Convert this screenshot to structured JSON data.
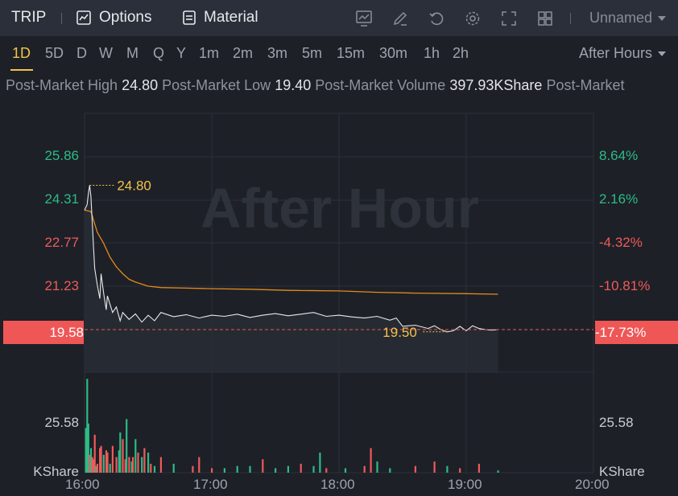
{
  "toolbar": {
    "symbol": "TRIP",
    "options_label": "Options",
    "material_label": "Material",
    "layout_name": "Unnamed",
    "icons": [
      "chart-indicator-icon",
      "draw-pencil-icon",
      "reset-icon",
      "settings-gear-icon",
      "fullscreen-icon",
      "grid-layout-icon"
    ]
  },
  "periods": [
    "1D",
    "5D",
    "D",
    "W",
    "M",
    "Q",
    "Y",
    "1m",
    "2m",
    "3m",
    "5m",
    "15m",
    "30m",
    "1h",
    "2h"
  ],
  "active_period": "1D",
  "session_label": "After Hours",
  "stats": {
    "high_label": "Post-Market High",
    "high_value": "24.80",
    "low_label": "Post-Market Low",
    "low_value": "19.40",
    "volume_label": "Post-Market Volume",
    "volume_value": "397.93KShare",
    "trailing_label": "Post-Market"
  },
  "chart_data": {
    "type": "line",
    "watermark": "After Hour",
    "x_ticks": [
      "16:00",
      "17:00",
      "18:00",
      "19:00",
      "20:00"
    ],
    "x_range_hours": [
      16,
      20
    ],
    "price_range": [
      18.04,
      27.4
    ],
    "price_ticks_left": [
      "25.86",
      "24.31",
      "22.77",
      "21.23"
    ],
    "price_ticks_right": [
      "8.64%",
      "2.16%",
      "-4.32%",
      "-10.81%"
    ],
    "current_price": "19.58",
    "current_change": "-17.73%",
    "current_price_value": 19.58,
    "high_marker": {
      "label": "24.80",
      "t": 16.04,
      "price": 24.8
    },
    "low_marker": {
      "label": "19.50",
      "t": 18.85,
      "price": 19.5
    },
    "colors": {
      "price_line": "#e8e8e8",
      "avg_line": "#e38a1e",
      "up": "#2dbb86",
      "down": "#ef5a5a",
      "marker": "#f3c34a"
    },
    "series": [
      {
        "name": "Price",
        "t": [
          16.0,
          16.02,
          16.03,
          16.04,
          16.05,
          16.06,
          16.07,
          16.08,
          16.1,
          16.12,
          16.13,
          16.15,
          16.17,
          16.18,
          16.2,
          16.22,
          16.25,
          16.28,
          16.3,
          16.35,
          16.4,
          16.45,
          16.5,
          16.55,
          16.6,
          16.7,
          16.8,
          16.9,
          17.0,
          17.1,
          17.2,
          17.3,
          17.4,
          17.5,
          17.6,
          17.7,
          17.8,
          17.9,
          18.0,
          18.1,
          18.2,
          18.3,
          18.4,
          18.45,
          18.5,
          18.6,
          18.7,
          18.75,
          18.8,
          18.85,
          18.9,
          18.95,
          19.0,
          19.05,
          19.1,
          19.15,
          19.2,
          19.25
        ],
        "values": [
          23.9,
          24.1,
          24.5,
          24.8,
          24.4,
          23.5,
          22.6,
          21.8,
          21.2,
          20.7,
          21.6,
          20.9,
          20.3,
          20.8,
          20.5,
          20.2,
          20.4,
          19.9,
          20.2,
          19.95,
          20.15,
          19.85,
          20.1,
          19.9,
          20.2,
          20.05,
          20.12,
          20.0,
          20.1,
          20.06,
          20.14,
          20.02,
          20.1,
          20.16,
          20.08,
          20.14,
          20.2,
          20.06,
          20.1,
          20.04,
          20.0,
          20.06,
          19.92,
          20.0,
          19.7,
          19.74,
          19.62,
          19.72,
          19.58,
          19.5,
          19.54,
          19.7,
          19.54,
          19.72,
          19.62,
          19.58,
          19.56,
          19.58
        ]
      },
      {
        "name": "Average",
        "t": [
          16.0,
          16.05,
          16.1,
          16.15,
          16.2,
          16.25,
          16.3,
          16.35,
          16.4,
          16.5,
          16.6,
          16.8,
          17.0,
          17.3,
          17.6,
          18.0,
          18.3,
          18.6,
          19.0,
          19.25
        ],
        "values": [
          23.9,
          23.85,
          23.1,
          22.7,
          22.2,
          21.85,
          21.6,
          21.4,
          21.3,
          21.15,
          21.1,
          21.08,
          21.06,
          21.04,
          21.0,
          20.98,
          20.93,
          20.9,
          20.88,
          20.86
        ]
      }
    ],
    "volume": {
      "unit": "KShare",
      "tick": "25.58",
      "t": [
        16.01,
        16.02,
        16.03,
        16.04,
        16.05,
        16.06,
        16.07,
        16.08,
        16.09,
        16.1,
        16.12,
        16.13,
        16.15,
        16.17,
        16.18,
        16.2,
        16.22,
        16.25,
        16.27,
        16.28,
        16.3,
        16.32,
        16.33,
        16.35,
        16.37,
        16.38,
        16.4,
        16.42,
        16.45,
        16.47,
        16.5,
        16.52,
        16.55,
        16.6,
        16.7,
        16.85,
        16.9,
        17.0,
        17.1,
        17.2,
        17.3,
        17.4,
        17.5,
        17.6,
        17.7,
        17.8,
        17.85,
        17.9,
        18.05,
        18.2,
        18.25,
        18.3,
        18.4,
        18.6,
        18.75,
        18.85,
        18.95,
        19.1,
        19.25
      ],
      "values": [
        40,
        84,
        44,
        16,
        22,
        14,
        12,
        34,
        6,
        8,
        22,
        24,
        16,
        20,
        18,
        8,
        24,
        14,
        20,
        36,
        30,
        12,
        48,
        14,
        10,
        14,
        30,
        18,
        14,
        22,
        18,
        8,
        6,
        14,
        8,
        6,
        14,
        4,
        4,
        6,
        6,
        12,
        4,
        6,
        8,
        6,
        18,
        4,
        4,
        6,
        22,
        10,
        4,
        6,
        10,
        6,
        4,
        8,
        2
      ],
      "direction": [
        "up",
        "up",
        "up",
        "down",
        "up",
        "down",
        "down",
        "down",
        "up",
        "down",
        "down",
        "down",
        "up",
        "down",
        "down",
        "up",
        "down",
        "down",
        "up",
        "up",
        "down",
        "down",
        "up",
        "down",
        "up",
        "down",
        "up",
        "down",
        "up",
        "down",
        "up",
        "down",
        "up",
        "down",
        "up",
        "down",
        "down",
        "down",
        "up",
        "up",
        "up",
        "down",
        "up",
        "up",
        "down",
        "up",
        "up",
        "down",
        "up",
        "down",
        "down",
        "up",
        "up",
        "down",
        "down",
        "up",
        "down",
        "down",
        "up"
      ],
      "range": [
        0,
        90
      ]
    }
  }
}
